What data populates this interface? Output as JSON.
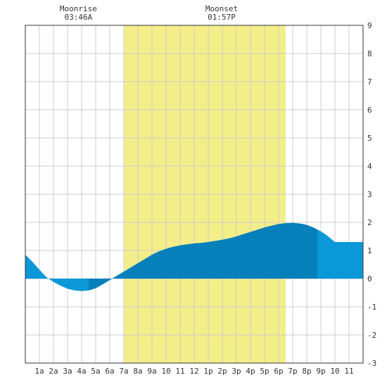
{
  "chart_data": {
    "type": "area",
    "title": "",
    "xlabel": "",
    "ylabel": "",
    "ylim": [
      -3,
      9
    ],
    "xlim": [
      0,
      24
    ],
    "y_ticks": [
      -3,
      -2,
      -1,
      0,
      1,
      2,
      3,
      4,
      5,
      6,
      7,
      8,
      9
    ],
    "x_tick_labels": [
      "1a",
      "2a",
      "3a",
      "4a",
      "5a",
      "6a",
      "7a",
      "8a",
      "9a",
      "10",
      "11",
      "12",
      "1p",
      "2p",
      "3p",
      "4p",
      "5p",
      "6p",
      "7p",
      "8p",
      "9p",
      "10",
      "11"
    ],
    "grid": true,
    "daylight": {
      "start_hour": 7.0,
      "end_hour": 18.5
    },
    "annotations": [
      {
        "label": "Moonrise",
        "time": "03:46A",
        "hour": 3.77
      },
      {
        "label": "Moonset",
        "time": "01:57P",
        "hour": 13.95
      }
    ],
    "series": [
      {
        "x": [
          0,
          0.5,
          1,
          1.5,
          2,
          2.5,
          3,
          3.5,
          4,
          4.5,
          5,
          5.5,
          6,
          6.5,
          7,
          7.5,
          8,
          8.5,
          9,
          9.5,
          10,
          10.5,
          11,
          11.5,
          12,
          12.5,
          13,
          13.5,
          14,
          14.5,
          15,
          15.5,
          16,
          16.5,
          17,
          17.5,
          18,
          18.5,
          19,
          19.5,
          20,
          20.5,
          21,
          21.5,
          22,
          22.5,
          23,
          23.5,
          24
        ],
        "values": [
          0.85,
          0.6,
          0.32,
          0.05,
          -0.12,
          -0.25,
          -0.36,
          -0.42,
          -0.44,
          -0.42,
          -0.34,
          -0.2,
          -0.05,
          0.1,
          0.25,
          0.4,
          0.55,
          0.7,
          0.85,
          0.97,
          1.06,
          1.13,
          1.18,
          1.22,
          1.25,
          1.27,
          1.3,
          1.34,
          1.38,
          1.43,
          1.5,
          1.58,
          1.66,
          1.74,
          1.82,
          1.88,
          1.94,
          1.97,
          1.98,
          1.96,
          1.91,
          1.81,
          1.68,
          1.51,
          1.3,
          1.3,
          1.3,
          1.3,
          1.3
        ]
      }
    ],
    "colors": {
      "daylight": "#f4ee88",
      "tide_light": "#0a98d8",
      "tide_dark": "#0680bb",
      "grid": "#cccccc",
      "axis": "#333333"
    }
  }
}
